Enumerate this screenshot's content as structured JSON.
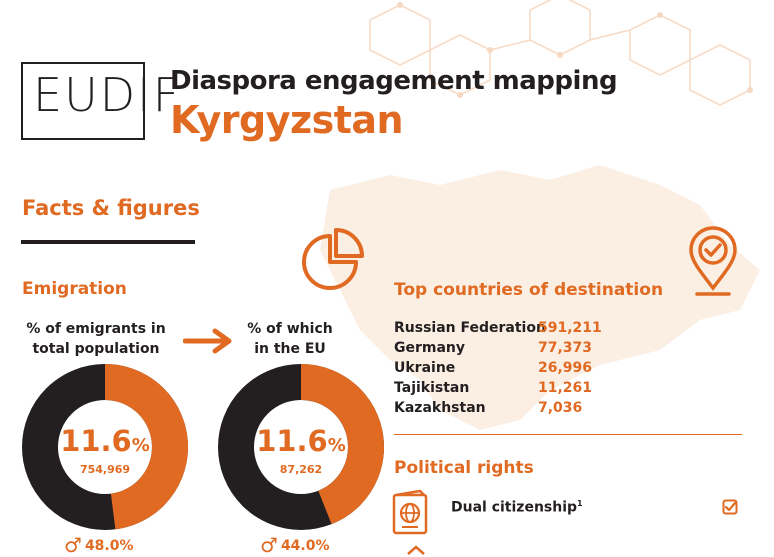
{
  "header": {
    "logo_text": "EUDIF",
    "subtitle": "Diaspora engagement mapping",
    "country": "Kyrgyzstan"
  },
  "section_title": "Facts & figures",
  "emigration": {
    "heading": "Emigration",
    "total": {
      "label_line1": "% of emigrants in",
      "label_line2": "total population",
      "percent": "11.6",
      "percent_sign": "%",
      "count": "754,969",
      "share": 0.116,
      "male_pct": "48.0%"
    },
    "eu": {
      "label_line1": "% of which",
      "label_line2": "in the EU",
      "percent": "11.6",
      "percent_sign": "%",
      "count": "87,262",
      "share": 0.116,
      "male_pct": "44.0%"
    }
  },
  "destinations": {
    "heading": "Top countries of destination",
    "rows": [
      {
        "country": "Russian Federation",
        "value": "591,211"
      },
      {
        "country": "Germany",
        "value": "77,373"
      },
      {
        "country": "Ukraine",
        "value": "26,996"
      },
      {
        "country": "Tajikistan",
        "value": "11,261"
      },
      {
        "country": "Kazakhstan",
        "value": "7,036"
      }
    ]
  },
  "political": {
    "heading": "Political rights",
    "dual_citizenship": "Dual citizenship",
    "dual_footnote": "1"
  },
  "icons": {
    "pie": "pie-chart-icon",
    "pin": "location-pin-check-icon",
    "passport": "passport-icon",
    "check": "checkbox-checked-icon",
    "arrow": "arrow-right-icon",
    "male": "male-symbol-icon"
  },
  "colors": {
    "accent": "#e06a22",
    "dark": "#231f20",
    "map_tint": "#fbeee3"
  }
}
